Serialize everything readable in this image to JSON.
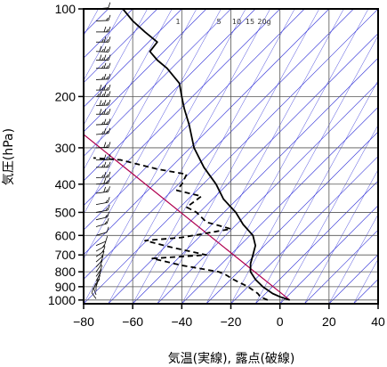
{
  "chart_data": {
    "type": "line",
    "xlabel": "気温(実線), 露点(破線)",
    "ylabel": "気圧(hPa)",
    "x_ticks": [
      -80,
      -60,
      -40,
      -20,
      0,
      20,
      40
    ],
    "x_tick_labels": [
      "−80",
      "−60",
      "−40",
      "−20",
      "0",
      "20",
      "40"
    ],
    "y_ticks": [
      100,
      200,
      300,
      400,
      500,
      600,
      700,
      800,
      900,
      1000
    ],
    "y_tick_labels": [
      "100",
      "200",
      "300",
      "400",
      "500",
      "600",
      "700",
      "800",
      "900",
      "1000"
    ],
    "xlim": [
      -80,
      40
    ],
    "ylim_hpa": [
      1030,
      100
    ],
    "y_scale": "log",
    "grid": true,
    "mixing_ratio_labels": [
      "1",
      "5",
      "10",
      "15",
      "20g"
    ],
    "series": [
      {
        "style": "solid",
        "points": [
          [
            4,
            1000
          ],
          [
            0,
            975
          ],
          [
            -3,
            950
          ],
          [
            -7,
            900
          ],
          [
            -10,
            850
          ],
          [
            -12,
            800
          ],
          [
            -12,
            750
          ],
          [
            -11,
            700
          ],
          [
            -10,
            650
          ],
          [
            -11,
            600
          ],
          [
            -15,
            550
          ],
          [
            -18,
            500
          ],
          [
            -23,
            450
          ],
          [
            -26,
            400
          ],
          [
            -31,
            350
          ],
          [
            -35,
            300
          ],
          [
            -37,
            250
          ],
          [
            -39,
            220
          ],
          [
            -40,
            200
          ],
          [
            -41,
            180
          ],
          [
            -46,
            160
          ],
          [
            -50,
            150
          ],
          [
            -53,
            140
          ],
          [
            -50,
            130
          ],
          [
            -55,
            120
          ],
          [
            -60,
            110
          ],
          [
            -64,
            100
          ]
        ]
      },
      {
        "style": "dashed",
        "points": [
          [
            -5,
            1000
          ],
          [
            -8,
            975
          ],
          [
            -9,
            950
          ],
          [
            -13,
            900
          ],
          [
            -19,
            850
          ],
          [
            -22,
            820
          ],
          [
            -25,
            800
          ],
          [
            -40,
            760
          ],
          [
            -52,
            720
          ],
          [
            -30,
            700
          ],
          [
            -44,
            660
          ],
          [
            -55,
            625
          ],
          [
            -40,
            610
          ],
          [
            -20,
            570
          ],
          [
            -30,
            540
          ],
          [
            -34,
            500
          ],
          [
            -38,
            480
          ],
          [
            -32,
            440
          ],
          [
            -42,
            420
          ],
          [
            -40,
            400
          ],
          [
            -38,
            370
          ],
          [
            -50,
            355
          ],
          [
            -65,
            330
          ],
          [
            -76,
            325
          ]
        ]
      }
    ],
    "reference_line": [
      [
        4,
        1000
      ],
      [
        -80,
        270
      ]
    ],
    "colors": {
      "isotherm": "#2b2bd6",
      "grid": "#555555",
      "temperature": "#000000",
      "dewpoint": "#000000",
      "reference": "#b0004f"
    },
    "wind_barbs": [
      {
        "p": 100,
        "spd": 5,
        "dir": 260
      },
      {
        "p": 110,
        "spd": 10,
        "dir": 265
      },
      {
        "p": 120,
        "spd": 15,
        "dir": 270
      },
      {
        "p": 130,
        "spd": 20,
        "dir": 270
      },
      {
        "p": 140,
        "spd": 25,
        "dir": 275
      },
      {
        "p": 150,
        "spd": 25,
        "dir": 270
      },
      {
        "p": 160,
        "spd": 20,
        "dir": 270
      },
      {
        "p": 175,
        "spd": 20,
        "dir": 265
      },
      {
        "p": 190,
        "spd": 25,
        "dir": 270
      },
      {
        "p": 200,
        "spd": 30,
        "dir": 270
      },
      {
        "p": 215,
        "spd": 25,
        "dir": 265
      },
      {
        "p": 230,
        "spd": 25,
        "dir": 270
      },
      {
        "p": 250,
        "spd": 20,
        "dir": 265
      },
      {
        "p": 270,
        "spd": 20,
        "dir": 260
      },
      {
        "p": 300,
        "spd": 15,
        "dir": 265
      },
      {
        "p": 330,
        "spd": 15,
        "dir": 270
      },
      {
        "p": 350,
        "spd": 20,
        "dir": 270
      },
      {
        "p": 380,
        "spd": 20,
        "dir": 265
      },
      {
        "p": 400,
        "spd": 15,
        "dir": 260
      },
      {
        "p": 430,
        "spd": 15,
        "dir": 255
      },
      {
        "p": 470,
        "spd": 10,
        "dir": 250
      },
      {
        "p": 500,
        "spd": 10,
        "dir": 250
      },
      {
        "p": 530,
        "spd": 10,
        "dir": 245
      },
      {
        "p": 560,
        "spd": 10,
        "dir": 240
      },
      {
        "p": 600,
        "spd": 5,
        "dir": 240
      },
      {
        "p": 650,
        "spd": 5,
        "dir": 230
      },
      {
        "p": 680,
        "spd": 10,
        "dir": 220
      },
      {
        "p": 710,
        "spd": 10,
        "dir": 215
      },
      {
        "p": 740,
        "spd": 10,
        "dir": 210
      },
      {
        "p": 770,
        "spd": 10,
        "dir": 205
      },
      {
        "p": 800,
        "spd": 10,
        "dir": 200
      },
      {
        "p": 830,
        "spd": 10,
        "dir": 200
      },
      {
        "p": 860,
        "spd": 10,
        "dir": 195
      },
      {
        "p": 900,
        "spd": 10,
        "dir": 190
      },
      {
        "p": 930,
        "spd": 5,
        "dir": 180
      },
      {
        "p": 960,
        "spd": 5,
        "dir": 170
      },
      {
        "p": 990,
        "spd": 5,
        "dir": 160
      }
    ]
  }
}
